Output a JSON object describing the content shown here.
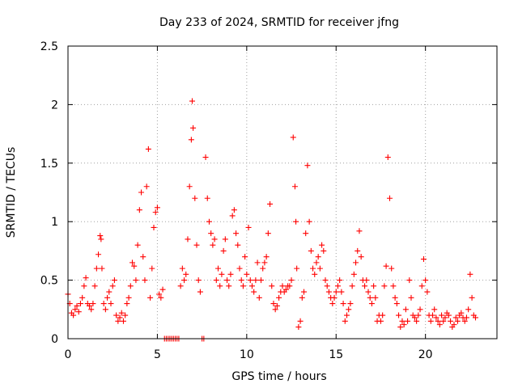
{
  "chart_data": {
    "type": "scatter",
    "title": "Day 233 of 2024, SRMTID for receiver jfng",
    "xlabel": "GPS time / hours",
    "ylabel": "SRMTID / TECUs",
    "xlim": [
      0,
      24
    ],
    "ylim": [
      0,
      2.5
    ],
    "xticks": [
      0,
      5,
      10,
      15,
      20
    ],
    "xtick_labels": [
      "0",
      "5",
      "10",
      "15",
      "20"
    ],
    "yticks": [
      0,
      0.5,
      1,
      1.5,
      2,
      2.5
    ],
    "ytick_labels": [
      "0",
      "0.5",
      "1",
      "1.5",
      "2",
      "2.5"
    ],
    "grid": true,
    "marker": "+",
    "series": [
      {
        "name": "SRMTID",
        "color": "#ff0000",
        "x": [
          0.0,
          0.1,
          0.2,
          0.3,
          0.4,
          0.5,
          0.6,
          0.7,
          0.8,
          0.9,
          1.0,
          1.1,
          1.2,
          1.3,
          1.4,
          1.5,
          1.6,
          1.7,
          1.8,
          1.85,
          1.9,
          2.0,
          2.1,
          2.2,
          2.3,
          2.4,
          2.5,
          2.6,
          2.7,
          2.8,
          2.9,
          3.0,
          3.1,
          3.2,
          3.3,
          3.4,
          3.5,
          3.6,
          3.7,
          3.8,
          3.9,
          4.0,
          4.1,
          4.2,
          4.3,
          4.4,
          4.5,
          4.6,
          4.7,
          4.8,
          4.9,
          5.0,
          5.1,
          5.2,
          5.3,
          5.4,
          5.5,
          5.6,
          5.7,
          5.8,
          5.9,
          6.0,
          6.1,
          6.2,
          6.3,
          6.4,
          6.5,
          6.6,
          6.7,
          6.8,
          6.9,
          6.95,
          7.0,
          7.1,
          7.2,
          7.3,
          7.4,
          7.5,
          7.6,
          7.7,
          7.8,
          7.9,
          8.0,
          8.1,
          8.2,
          8.3,
          8.4,
          8.5,
          8.6,
          8.7,
          8.8,
          8.9,
          9.0,
          9.1,
          9.2,
          9.3,
          9.4,
          9.5,
          9.6,
          9.7,
          9.8,
          9.9,
          10.0,
          10.1,
          10.2,
          10.3,
          10.4,
          10.5,
          10.6,
          10.7,
          10.8,
          10.9,
          11.0,
          11.1,
          11.2,
          11.3,
          11.4,
          11.5,
          11.6,
          11.7,
          11.8,
          11.9,
          12.0,
          12.1,
          12.2,
          12.3,
          12.4,
          12.5,
          12.6,
          12.7,
          12.75,
          12.8,
          12.9,
          13.0,
          13.1,
          13.2,
          13.3,
          13.4,
          13.5,
          13.6,
          13.7,
          13.8,
          13.9,
          14.0,
          14.1,
          14.2,
          14.3,
          14.4,
          14.5,
          14.6,
          14.7,
          14.8,
          14.9,
          15.0,
          15.1,
          15.2,
          15.3,
          15.4,
          15.5,
          15.6,
          15.7,
          15.8,
          15.9,
          16.0,
          16.1,
          16.2,
          16.3,
          16.4,
          16.5,
          16.6,
          16.7,
          16.8,
          16.9,
          17.0,
          17.1,
          17.2,
          17.3,
          17.4,
          17.5,
          17.6,
          17.7,
          17.8,
          17.9,
          18.0,
          18.1,
          18.2,
          18.3,
          18.4,
          18.5,
          18.6,
          18.7,
          18.8,
          18.9,
          19.0,
          19.1,
          19.2,
          19.3,
          19.4,
          19.5,
          19.6,
          19.7,
          19.8,
          19.9,
          20.0,
          20.1,
          20.2,
          20.3,
          20.4,
          20.5,
          20.6,
          20.7,
          20.8,
          20.9,
          21.0,
          21.1,
          21.2,
          21.3,
          21.4,
          21.5,
          21.6,
          21.7,
          21.8,
          21.9,
          22.0,
          22.1,
          22.2,
          22.3,
          22.4,
          22.5,
          22.6,
          22.7,
          22.8
        ],
        "y": [
          0.38,
          0.3,
          0.22,
          0.2,
          0.25,
          0.28,
          0.23,
          0.3,
          0.35,
          0.45,
          0.52,
          0.3,
          0.28,
          0.25,
          0.3,
          0.45,
          0.6,
          0.72,
          0.88,
          0.85,
          0.6,
          0.3,
          0.25,
          0.35,
          0.4,
          0.3,
          0.45,
          0.5,
          0.2,
          0.15,
          0.18,
          0.22,
          0.15,
          0.2,
          0.3,
          0.35,
          0.45,
          0.65,
          0.62,
          0.5,
          0.8,
          1.1,
          1.25,
          0.7,
          0.5,
          1.3,
          1.62,
          0.35,
          0.6,
          0.95,
          1.08,
          1.12,
          0.38,
          0.35,
          0.42,
          0.0,
          0.0,
          0.0,
          0.0,
          0.0,
          0.0,
          0.0,
          0.0,
          0.0,
          0.45,
          0.6,
          0.5,
          0.55,
          0.85,
          1.3,
          1.7,
          2.03,
          1.8,
          1.2,
          0.8,
          0.5,
          0.4,
          0.0,
          0.0,
          1.55,
          1.2,
          1.0,
          0.9,
          0.8,
          0.85,
          0.5,
          0.6,
          0.45,
          0.55,
          0.75,
          0.85,
          0.5,
          0.45,
          0.55,
          1.05,
          1.1,
          0.9,
          0.8,
          0.6,
          0.5,
          0.45,
          0.7,
          0.55,
          0.95,
          0.5,
          0.45,
          0.4,
          0.5,
          0.65,
          0.35,
          0.5,
          0.6,
          0.65,
          0.7,
          0.9,
          1.15,
          0.45,
          0.3,
          0.25,
          0.28,
          0.35,
          0.4,
          0.45,
          0.4,
          0.42,
          0.45,
          0.45,
          0.5,
          1.72,
          1.3,
          1.0,
          0.6,
          0.1,
          0.15,
          0.35,
          0.4,
          0.9,
          1.48,
          1.0,
          0.75,
          0.6,
          0.55,
          0.65,
          0.7,
          0.6,
          0.8,
          0.75,
          0.5,
          0.45,
          0.4,
          0.35,
          0.3,
          0.35,
          0.4,
          0.45,
          0.5,
          0.4,
          0.3,
          0.15,
          0.2,
          0.25,
          0.3,
          0.45,
          0.55,
          0.65,
          0.75,
          0.92,
          0.7,
          0.5,
          0.45,
          0.5,
          0.4,
          0.35,
          0.3,
          0.45,
          0.35,
          0.15,
          0.2,
          0.15,
          0.2,
          0.45,
          0.62,
          1.55,
          1.2,
          0.6,
          0.45,
          0.35,
          0.3,
          0.2,
          0.1,
          0.15,
          0.12,
          0.25,
          0.15,
          0.5,
          0.35,
          0.2,
          0.18,
          0.15,
          0.2,
          0.25,
          0.45,
          0.68,
          0.5,
          0.4,
          0.2,
          0.15,
          0.2,
          0.25,
          0.18,
          0.15,
          0.12,
          0.2,
          0.15,
          0.18,
          0.22,
          0.2,
          0.15,
          0.1,
          0.12,
          0.18,
          0.15,
          0.2,
          0.22,
          0.18,
          0.15,
          0.18,
          0.25,
          0.55,
          0.35,
          0.2,
          0.18
        ]
      }
    ]
  }
}
